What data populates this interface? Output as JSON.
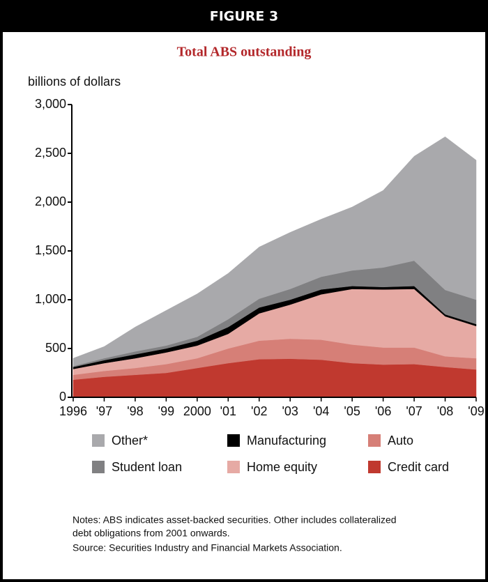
{
  "header": "FIGURE 3",
  "notes": [
    "Notes: ABS indicates asset-backed securities. Other includes collateralized",
    "debt obligations from 2001 onwards.",
    "Source: Securities Industry and Financial Markets Association."
  ],
  "chart_data": {
    "type": "area",
    "stacked": true,
    "title": "Total ABS outstanding",
    "y_label": "billions of dollars",
    "categories": [
      "1996",
      "'97",
      "'98",
      "'99",
      "2000",
      "'01",
      "'02",
      "'03",
      "'04",
      "'05",
      "'06",
      "'07",
      "'08",
      "'09"
    ],
    "series": [
      {
        "name": "Credit card",
        "color": "#c0392f",
        "values": [
          180,
          210,
          230,
          250,
          300,
          350,
          390,
          395,
          385,
          350,
          335,
          340,
          310,
          285
        ]
      },
      {
        "name": "Auto",
        "color": "#d67f77",
        "values": [
          50,
          60,
          70,
          90,
          100,
          150,
          190,
          205,
          205,
          190,
          175,
          170,
          110,
          115
        ]
      },
      {
        "name": "Home equity",
        "color": "#e6aaa4",
        "values": [
          60,
          80,
          100,
          120,
          130,
          150,
          280,
          350,
          465,
          570,
          595,
          600,
          410,
          330
        ]
      },
      {
        "name": "Manufacturing",
        "color": "#000000",
        "values": [
          20,
          30,
          40,
          40,
          50,
          70,
          60,
          50,
          50,
          30,
          25,
          30,
          20,
          20
        ]
      },
      {
        "name": "Student loan",
        "color": "#808082",
        "values": [
          10,
          20,
          30,
          30,
          40,
          80,
          90,
          110,
          130,
          160,
          200,
          260,
          250,
          250
        ]
      },
      {
        "name": "Other*",
        "color": "#a9a9ac",
        "values": [
          80,
          120,
          250,
          360,
          440,
          470,
          530,
          580,
          590,
          650,
          790,
          1070,
          1570,
          1430
        ]
      }
    ],
    "ylim": [
      0,
      3000
    ],
    "yticks": [
      0,
      500,
      {
        "value": 1000,
        "label": "1,000"
      },
      {
        "value": 1500,
        "label": "1,500"
      },
      {
        "value": 2000,
        "label": "2,000"
      },
      {
        "value": 2500,
        "label": "2,500"
      },
      {
        "value": 3000,
        "label": "3,000"
      }
    ],
    "grid": false
  }
}
